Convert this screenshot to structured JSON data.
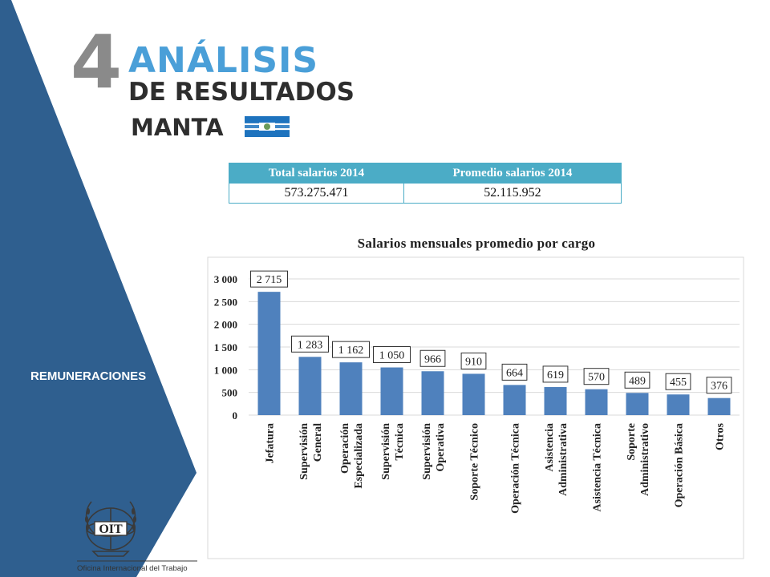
{
  "header": {
    "number": "4",
    "title": "ANÁLISIS",
    "subtitle": "DE RESULTADOS",
    "city": "MANTA"
  },
  "sidebar": {
    "label": "REMUNERACIONES",
    "color": "#2f5f8f"
  },
  "summary_table": {
    "headers": [
      "Total salarios 2014",
      "Promedio salarios 2014"
    ],
    "values": [
      "573.275.471",
      "52.115.952"
    ]
  },
  "logo": {
    "text": "OIT",
    "caption": "Oficina Internacional del Trabajo"
  },
  "chart_data": {
    "type": "bar",
    "title": "Salarios mensuales promedio por cargo",
    "categories": [
      [
        "Jefatura"
      ],
      [
        "Supervisión",
        "General"
      ],
      [
        "Operación",
        "Especializada"
      ],
      [
        "Supervisión",
        "Técnica"
      ],
      [
        "Supervisión",
        "Operativa"
      ],
      [
        "Soporte Técnico"
      ],
      [
        "Operación Técnica"
      ],
      [
        "Asistencia",
        "Administrativa"
      ],
      [
        "Asistencia Técnica"
      ],
      [
        "Soporte",
        "Administrativo"
      ],
      [
        "Operación Básica"
      ],
      [
        "Otros"
      ]
    ],
    "values": [
      2715,
      1283,
      1162,
      1050,
      966,
      910,
      664,
      619,
      570,
      489,
      455,
      376
    ],
    "data_labels": [
      "2 715",
      "1 283",
      "1 162",
      "1 050",
      "966",
      "910",
      "664",
      "619",
      "570",
      "489",
      "455",
      "376"
    ],
    "y_ticks": [
      "0",
      "500",
      "1 000",
      "1 500",
      "2 000",
      "2 500",
      "3 000"
    ],
    "ylim": [
      0,
      3000
    ],
    "grid": true,
    "bar_color": "#4f81bd"
  }
}
